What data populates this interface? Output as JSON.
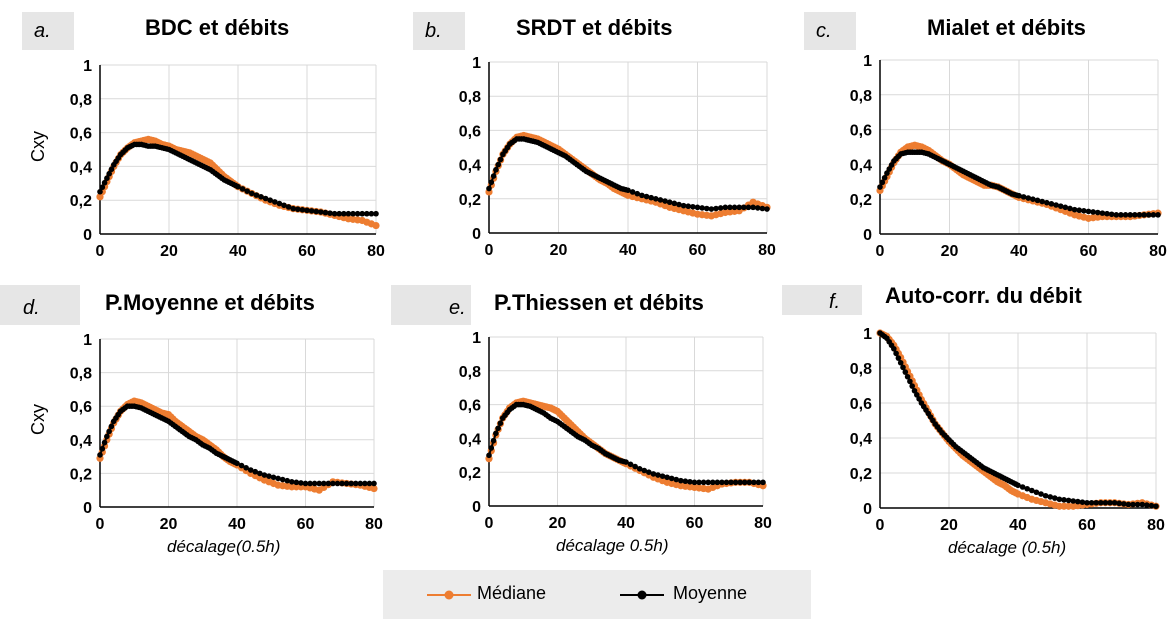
{
  "legend": {
    "items": [
      {
        "label": "Médiane",
        "color": "#ed7d31"
      },
      {
        "label": "Moyenne",
        "color": "#000000"
      }
    ]
  },
  "chart_data": [
    {
      "type": "line",
      "panel_letter": "a.",
      "title": "BDC et débits",
      "ylabel": "Cxy",
      "xlabel": "",
      "xlim": [
        0,
        80
      ],
      "ylim": [
        0,
        1
      ],
      "xticks": [
        "0",
        "20",
        "40",
        "60",
        "80"
      ],
      "yticks": [
        "0",
        "0,2",
        "0,4",
        "0,6",
        "0,8",
        "1"
      ],
      "series": [
        {
          "name": "Médiane",
          "color": "#ed7d31",
          "x": [
            0,
            2,
            4,
            6,
            8,
            10,
            12,
            14,
            16,
            18,
            20,
            22,
            24,
            26,
            28,
            30,
            32,
            34,
            36,
            38,
            40,
            44,
            48,
            52,
            56,
            60,
            64,
            68,
            72,
            76,
            80
          ],
          "values": [
            0.22,
            0.31,
            0.4,
            0.47,
            0.51,
            0.54,
            0.55,
            0.56,
            0.55,
            0.53,
            0.52,
            0.5,
            0.49,
            0.48,
            0.46,
            0.44,
            0.42,
            0.38,
            0.34,
            0.31,
            0.28,
            0.24,
            0.2,
            0.17,
            0.15,
            0.14,
            0.13,
            0.11,
            0.09,
            0.08,
            0.05
          ]
        },
        {
          "name": "Moyenne",
          "color": "#000000",
          "x": [
            0,
            2,
            4,
            6,
            8,
            10,
            12,
            14,
            16,
            18,
            20,
            22,
            24,
            26,
            28,
            30,
            32,
            34,
            36,
            38,
            40,
            44,
            48,
            52,
            56,
            60,
            64,
            68,
            72,
            76,
            80
          ],
          "values": [
            0.25,
            0.33,
            0.41,
            0.47,
            0.51,
            0.53,
            0.53,
            0.52,
            0.52,
            0.51,
            0.5,
            0.48,
            0.46,
            0.44,
            0.42,
            0.4,
            0.38,
            0.35,
            0.32,
            0.3,
            0.28,
            0.24,
            0.21,
            0.18,
            0.15,
            0.14,
            0.13,
            0.12,
            0.12,
            0.12,
            0.12
          ]
        }
      ]
    },
    {
      "type": "line",
      "panel_letter": "b.",
      "title": "SRDT et débits",
      "ylabel": "",
      "xlabel": "",
      "xlim": [
        0,
        80
      ],
      "ylim": [
        0,
        1
      ],
      "xticks": [
        "0",
        "20",
        "40",
        "60",
        "80"
      ],
      "yticks": [
        "0",
        "0,2",
        "0,4",
        "0,6",
        "0,8",
        "1"
      ],
      "series": [
        {
          "name": "Médiane",
          "color": "#ed7d31",
          "x": [
            0,
            2,
            4,
            6,
            8,
            10,
            12,
            14,
            16,
            18,
            20,
            22,
            24,
            26,
            28,
            30,
            32,
            34,
            36,
            38,
            40,
            44,
            48,
            52,
            56,
            60,
            64,
            68,
            72,
            76,
            80
          ],
          "values": [
            0.24,
            0.36,
            0.46,
            0.52,
            0.56,
            0.57,
            0.56,
            0.55,
            0.53,
            0.51,
            0.49,
            0.46,
            0.43,
            0.4,
            0.37,
            0.34,
            0.31,
            0.29,
            0.26,
            0.24,
            0.22,
            0.2,
            0.18,
            0.15,
            0.13,
            0.11,
            0.1,
            0.12,
            0.13,
            0.18,
            0.15
          ]
        },
        {
          "name": "Moyenne",
          "color": "#000000",
          "x": [
            0,
            2,
            4,
            6,
            8,
            10,
            12,
            14,
            16,
            18,
            20,
            22,
            24,
            26,
            28,
            30,
            32,
            34,
            36,
            38,
            40,
            44,
            48,
            52,
            56,
            60,
            64,
            68,
            72,
            76,
            80
          ],
          "values": [
            0.26,
            0.37,
            0.46,
            0.52,
            0.55,
            0.55,
            0.54,
            0.53,
            0.51,
            0.49,
            0.47,
            0.45,
            0.42,
            0.39,
            0.36,
            0.34,
            0.32,
            0.3,
            0.28,
            0.26,
            0.25,
            0.22,
            0.2,
            0.18,
            0.16,
            0.15,
            0.14,
            0.15,
            0.15,
            0.15,
            0.14
          ]
        }
      ]
    },
    {
      "type": "line",
      "panel_letter": "c.",
      "title": "Mialet et débits",
      "ylabel": "",
      "xlabel": "",
      "xlim": [
        0,
        80
      ],
      "ylim": [
        0,
        1
      ],
      "xticks": [
        "0",
        "20",
        "40",
        "60",
        "80"
      ],
      "yticks": [
        "0",
        "0,2",
        "0,4",
        "0,6",
        "0,8",
        "1"
      ],
      "series": [
        {
          "name": "Médiane",
          "color": "#ed7d31",
          "x": [
            0,
            2,
            4,
            6,
            8,
            10,
            12,
            14,
            16,
            18,
            20,
            22,
            24,
            26,
            28,
            30,
            32,
            34,
            36,
            38,
            40,
            44,
            48,
            52,
            56,
            60,
            64,
            68,
            72,
            76,
            80
          ],
          "values": [
            0.25,
            0.33,
            0.41,
            0.47,
            0.5,
            0.51,
            0.5,
            0.48,
            0.45,
            0.42,
            0.4,
            0.37,
            0.34,
            0.32,
            0.3,
            0.28,
            0.28,
            0.27,
            0.25,
            0.23,
            0.21,
            0.19,
            0.17,
            0.14,
            0.11,
            0.09,
            0.1,
            0.1,
            0.1,
            0.11,
            0.12
          ]
        },
        {
          "name": "Moyenne",
          "color": "#000000",
          "x": [
            0,
            2,
            4,
            6,
            8,
            10,
            12,
            14,
            16,
            18,
            20,
            22,
            24,
            26,
            28,
            30,
            32,
            34,
            36,
            38,
            40,
            44,
            48,
            52,
            56,
            60,
            64,
            68,
            72,
            76,
            80
          ],
          "values": [
            0.27,
            0.35,
            0.42,
            0.46,
            0.47,
            0.47,
            0.47,
            0.46,
            0.44,
            0.42,
            0.4,
            0.38,
            0.36,
            0.34,
            0.32,
            0.3,
            0.28,
            0.27,
            0.25,
            0.23,
            0.22,
            0.2,
            0.18,
            0.16,
            0.14,
            0.13,
            0.12,
            0.11,
            0.11,
            0.11,
            0.11
          ]
        }
      ]
    },
    {
      "type": "line",
      "panel_letter": "d.",
      "title": "P.Moyenne et débits",
      "ylabel": "Cxy",
      "xlabel": "décalage(0.5h)",
      "xlim": [
        0,
        80
      ],
      "ylim": [
        0,
        1
      ],
      "xticks": [
        "0",
        "20",
        "40",
        "60",
        "80"
      ],
      "yticks": [
        "0",
        "0,2",
        "0,4",
        "0,6",
        "0,8",
        "1"
      ],
      "series": [
        {
          "name": "Médiane",
          "color": "#ed7d31",
          "x": [
            0,
            2,
            4,
            6,
            8,
            10,
            12,
            14,
            16,
            18,
            20,
            22,
            24,
            26,
            28,
            30,
            32,
            34,
            36,
            38,
            40,
            44,
            48,
            52,
            56,
            60,
            64,
            68,
            72,
            76,
            80
          ],
          "values": [
            0.29,
            0.4,
            0.5,
            0.57,
            0.61,
            0.63,
            0.62,
            0.6,
            0.58,
            0.56,
            0.55,
            0.51,
            0.48,
            0.45,
            0.42,
            0.4,
            0.37,
            0.34,
            0.3,
            0.27,
            0.25,
            0.2,
            0.16,
            0.13,
            0.12,
            0.12,
            0.1,
            0.15,
            0.14,
            0.13,
            0.11
          ]
        },
        {
          "name": "Moyenne",
          "color": "#000000",
          "x": [
            0,
            2,
            4,
            6,
            8,
            10,
            12,
            14,
            16,
            18,
            20,
            22,
            24,
            26,
            28,
            30,
            32,
            34,
            36,
            38,
            40,
            44,
            48,
            52,
            56,
            60,
            64,
            68,
            72,
            76,
            80
          ],
          "values": [
            0.31,
            0.42,
            0.51,
            0.57,
            0.6,
            0.6,
            0.59,
            0.57,
            0.55,
            0.53,
            0.51,
            0.48,
            0.45,
            0.42,
            0.4,
            0.37,
            0.35,
            0.32,
            0.3,
            0.28,
            0.26,
            0.22,
            0.19,
            0.17,
            0.15,
            0.14,
            0.14,
            0.14,
            0.14,
            0.14,
            0.14
          ]
        }
      ]
    },
    {
      "type": "line",
      "panel_letter": "e.",
      "title": "P.Thiessen et débits",
      "ylabel": "",
      "xlabel": "décalage 0.5h)",
      "xlim": [
        0,
        80
      ],
      "ylim": [
        0,
        1
      ],
      "xticks": [
        "0",
        "20",
        "40",
        "60",
        "80"
      ],
      "yticks": [
        "0",
        "0,2",
        "0,4",
        "0,6",
        "0,8",
        "1"
      ],
      "series": [
        {
          "name": "Médiane",
          "color": "#ed7d31",
          "x": [
            0,
            2,
            4,
            6,
            8,
            10,
            12,
            14,
            16,
            18,
            20,
            22,
            24,
            26,
            28,
            30,
            32,
            34,
            36,
            38,
            40,
            44,
            48,
            52,
            56,
            60,
            64,
            68,
            72,
            76,
            80
          ],
          "values": [
            0.28,
            0.42,
            0.52,
            0.58,
            0.61,
            0.62,
            0.61,
            0.6,
            0.59,
            0.58,
            0.56,
            0.52,
            0.48,
            0.44,
            0.4,
            0.37,
            0.34,
            0.31,
            0.29,
            0.27,
            0.25,
            0.21,
            0.17,
            0.14,
            0.12,
            0.11,
            0.1,
            0.13,
            0.14,
            0.14,
            0.12
          ]
        },
        {
          "name": "Moyenne",
          "color": "#000000",
          "x": [
            0,
            2,
            4,
            6,
            8,
            10,
            12,
            14,
            16,
            18,
            20,
            22,
            24,
            26,
            28,
            30,
            32,
            34,
            36,
            38,
            40,
            44,
            48,
            52,
            56,
            60,
            64,
            68,
            72,
            76,
            80
          ],
          "values": [
            0.3,
            0.43,
            0.52,
            0.57,
            0.6,
            0.6,
            0.59,
            0.57,
            0.55,
            0.52,
            0.5,
            0.47,
            0.44,
            0.41,
            0.39,
            0.36,
            0.34,
            0.31,
            0.29,
            0.27,
            0.26,
            0.22,
            0.19,
            0.17,
            0.15,
            0.14,
            0.14,
            0.14,
            0.14,
            0.14,
            0.14
          ]
        }
      ]
    },
    {
      "type": "line",
      "panel_letter": "f.",
      "title": "Auto-corr. du débit",
      "ylabel": "",
      "xlabel": "décalage (0.5h)",
      "xlim": [
        0,
        80
      ],
      "ylim": [
        0,
        1
      ],
      "xticks": [
        "0",
        "20",
        "40",
        "60",
        "80"
      ],
      "yticks": [
        "0",
        "0,2",
        "0,4",
        "0,6",
        "0,8",
        "1"
      ],
      "series": [
        {
          "name": "Médiane",
          "color": "#ed7d31",
          "x": [
            0,
            2,
            4,
            6,
            8,
            10,
            12,
            14,
            16,
            18,
            20,
            22,
            24,
            26,
            28,
            30,
            32,
            34,
            36,
            38,
            40,
            44,
            48,
            52,
            56,
            60,
            64,
            68,
            72,
            76,
            80
          ],
          "values": [
            1.0,
            0.98,
            0.93,
            0.86,
            0.78,
            0.7,
            0.62,
            0.55,
            0.48,
            0.43,
            0.38,
            0.34,
            0.3,
            0.27,
            0.24,
            0.21,
            0.18,
            0.15,
            0.13,
            0.1,
            0.08,
            0.05,
            0.03,
            0.01,
            0.01,
            0.02,
            0.03,
            0.03,
            0.02,
            0.03,
            0.01
          ]
        },
        {
          "name": "Moyenne",
          "color": "#000000",
          "x": [
            0,
            2,
            4,
            6,
            8,
            10,
            12,
            14,
            16,
            18,
            20,
            22,
            24,
            26,
            28,
            30,
            32,
            34,
            36,
            38,
            40,
            44,
            48,
            52,
            56,
            60,
            64,
            68,
            72,
            76,
            80
          ],
          "values": [
            1.0,
            0.97,
            0.91,
            0.83,
            0.75,
            0.67,
            0.6,
            0.54,
            0.48,
            0.43,
            0.39,
            0.35,
            0.32,
            0.29,
            0.26,
            0.23,
            0.21,
            0.19,
            0.17,
            0.15,
            0.13,
            0.1,
            0.07,
            0.05,
            0.04,
            0.03,
            0.03,
            0.03,
            0.02,
            0.02,
            0.01
          ]
        }
      ]
    }
  ]
}
